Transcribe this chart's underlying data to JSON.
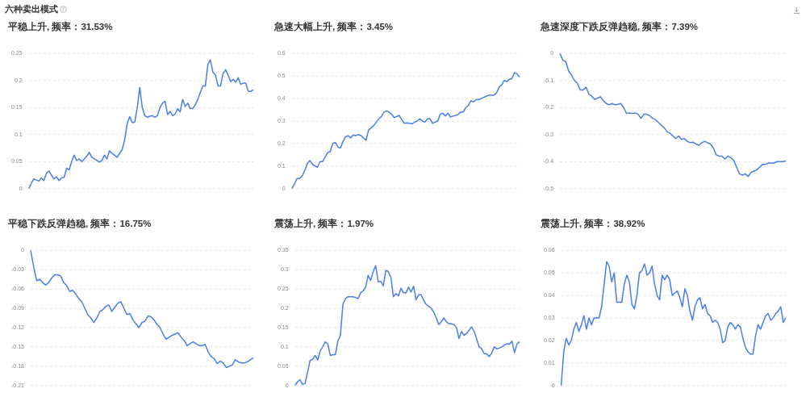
{
  "chart_data": [
    {
      "type": "line",
      "title": "平稳上升, 频率：31.53%",
      "annotations": [
        "六种卖出模式"
      ],
      "grid": "y",
      "legend": false,
      "marker": "none",
      "line_style": "solid",
      "ylim": [
        0,
        0.25
      ],
      "yticks": [
        0,
        0.05,
        0.1,
        0.15,
        0.2,
        0.25
      ],
      "categories": [
        null,
        null,
        null,
        null,
        null,
        null,
        null,
        null,
        null,
        null,
        null,
        null,
        null,
        null,
        null,
        null,
        null,
        null,
        null,
        null,
        null,
        null,
        null,
        null,
        null,
        null,
        null,
        null,
        null,
        null,
        null,
        null,
        null,
        null,
        null,
        null,
        null,
        null,
        null,
        null,
        null,
        null,
        null,
        null,
        null,
        null,
        null,
        null,
        null,
        null,
        null,
        null,
        null,
        null,
        null,
        null,
        null,
        null,
        null,
        null,
        null,
        null,
        null,
        null,
        null,
        null,
        null,
        null,
        null,
        null,
        null,
        null,
        null,
        null,
        null,
        null,
        null,
        null,
        null,
        null,
        null,
        null,
        null,
        null,
        null,
        null,
        null,
        null,
        null,
        null
      ],
      "series": [
        {
          "color": "#4a7ee8",
          "values": [
            0,
            0.01,
            0.018,
            0.016,
            0.014,
            0.02,
            0.015,
            0.028,
            0.033,
            0.025,
            0.018,
            0.022,
            0.015,
            0.02,
            0.021,
            0.038,
            0.035,
            0.05,
            0.062,
            0.052,
            0.055,
            0.05,
            0.055,
            0.06,
            0.067,
            0.058,
            0.055,
            0.052,
            0.049,
            0.052,
            0.062,
            0.055,
            0.07,
            0.065,
            0.062,
            0.058,
            0.065,
            0.072,
            0.09,
            0.12,
            0.133,
            0.122,
            0.123,
            0.15,
            0.187,
            0.15,
            0.135,
            0.132,
            0.134,
            0.135,
            0.132,
            0.135,
            0.15,
            0.158,
            0.162,
            0.137,
            0.143,
            0.135,
            0.138,
            0.148,
            0.142,
            0.165,
            0.152,
            0.158,
            0.148,
            0.148,
            0.155,
            0.165,
            0.178,
            0.19,
            0.19,
            0.23,
            0.238,
            0.215,
            0.21,
            0.19,
            0.19,
            0.213,
            0.22,
            0.21,
            0.198,
            0.202,
            0.197,
            0.205,
            0.193,
            0.195,
            0.195,
            0.18,
            0.18,
            0.183
          ]
        }
      ]
    },
    {
      "type": "line",
      "title": "急速大幅上升, 频率：3.45%",
      "grid": "y",
      "legend": false,
      "marker": "none",
      "line_style": "solid",
      "ylim": [
        0,
        0.6
      ],
      "yticks": [
        0,
        0.1,
        0.2,
        0.3,
        0.4,
        0.5,
        0.6
      ],
      "categories": [
        null,
        null,
        null,
        null,
        null,
        null,
        null,
        null,
        null,
        null,
        null,
        null,
        null,
        null,
        null,
        null,
        null,
        null,
        null,
        null,
        null,
        null,
        null,
        null,
        null,
        null,
        null,
        null,
        null,
        null,
        null,
        null,
        null,
        null,
        null,
        null,
        null,
        null,
        null,
        null,
        null,
        null,
        null,
        null,
        null,
        null,
        null,
        null,
        null,
        null,
        null,
        null,
        null,
        null,
        null,
        null,
        null,
        null,
        null,
        null,
        null,
        null,
        null,
        null,
        null,
        null,
        null,
        null,
        null,
        null,
        null,
        null,
        null,
        null,
        null,
        null,
        null,
        null,
        null,
        null,
        null,
        null,
        null,
        null,
        null,
        null,
        null,
        null,
        null,
        null
      ],
      "series": [
        {
          "color": "#4a7ee8",
          "values": [
            0,
            0.02,
            0.045,
            0.045,
            0.055,
            0.08,
            0.11,
            0.125,
            0.11,
            0.1,
            0.095,
            0.12,
            0.12,
            0.14,
            0.16,
            0.165,
            0.2,
            0.205,
            0.185,
            0.18,
            0.21,
            0.23,
            0.235,
            0.225,
            0.238,
            0.235,
            0.24,
            0.235,
            0.225,
            0.215,
            0.26,
            0.27,
            0.28,
            0.295,
            0.31,
            0.32,
            0.34,
            0.345,
            0.34,
            0.33,
            0.315,
            0.32,
            0.325,
            0.305,
            0.29,
            0.292,
            0.29,
            0.288,
            0.295,
            0.3,
            0.31,
            0.3,
            0.295,
            0.31,
            0.31,
            0.29,
            0.295,
            0.3,
            0.33,
            0.335,
            0.322,
            0.335,
            0.318,
            0.322,
            0.325,
            0.33,
            0.34,
            0.34,
            0.36,
            0.37,
            0.39,
            0.385,
            0.395,
            0.395,
            0.4,
            0.405,
            0.41,
            0.415,
            0.415,
            0.415,
            0.425,
            0.45,
            0.46,
            0.48,
            0.475,
            0.485,
            0.488,
            0.515,
            0.51,
            0.495
          ]
        }
      ]
    },
    {
      "type": "line",
      "title": "急速深度下跌反弹趋稳, 频率：7.39%",
      "grid": "y",
      "legend": false,
      "marker": "none",
      "line_style": "solid",
      "ylim": [
        -0.5,
        0
      ],
      "yticks": [
        -0.5,
        -0.4,
        -0.3,
        -0.2,
        -0.1,
        0
      ],
      "categories": [
        null,
        null,
        null,
        null,
        null,
        null,
        null,
        null,
        null,
        null,
        null,
        null,
        null,
        null,
        null,
        null,
        null,
        null,
        null,
        null,
        null,
        null,
        null,
        null,
        null,
        null,
        null,
        null,
        null,
        null,
        null,
        null,
        null,
        null,
        null,
        null,
        null,
        null,
        null,
        null,
        null,
        null,
        null,
        null,
        null,
        null,
        null,
        null,
        null,
        null,
        null,
        null,
        null,
        null,
        null,
        null,
        null,
        null,
        null,
        null,
        null,
        null,
        null,
        null,
        null,
        null,
        null,
        null,
        null,
        null,
        null,
        null,
        null,
        null,
        null,
        null,
        null,
        null,
        null
      ],
      "series": [
        {
          "color": "#4a7ee8",
          "values": [
            0,
            -0.025,
            -0.03,
            -0.065,
            -0.08,
            -0.1,
            -0.11,
            -0.135,
            -0.135,
            -0.125,
            -0.15,
            -0.158,
            -0.17,
            -0.165,
            -0.16,
            -0.175,
            -0.185,
            -0.19,
            -0.185,
            -0.19,
            -0.188,
            -0.185,
            -0.2,
            -0.222,
            -0.22,
            -0.222,
            -0.22,
            -0.225,
            -0.24,
            -0.225,
            -0.225,
            -0.23,
            -0.24,
            -0.245,
            -0.255,
            -0.265,
            -0.275,
            -0.29,
            -0.295,
            -0.305,
            -0.315,
            -0.305,
            -0.318,
            -0.315,
            -0.325,
            -0.33,
            -0.328,
            -0.335,
            -0.34,
            -0.33,
            -0.325,
            -0.33,
            -0.335,
            -0.35,
            -0.375,
            -0.38,
            -0.38,
            -0.39,
            -0.38,
            -0.385,
            -0.395,
            -0.42,
            -0.445,
            -0.45,
            -0.445,
            -0.455,
            -0.44,
            -0.435,
            -0.43,
            -0.42,
            -0.41,
            -0.41,
            -0.405,
            -0.405,
            -0.405,
            -0.4,
            -0.4,
            -0.4,
            -0.398
          ]
        }
      ]
    },
    {
      "type": "line",
      "title": "平稳下跌反弹趋稳, 频率：16.75%",
      "grid": "y",
      "legend": false,
      "marker": "none",
      "line_style": "solid",
      "ylim": [
        -0.21,
        0
      ],
      "yticks": [
        -0.21,
        -0.18,
        -0.15,
        -0.12,
        -0.09,
        -0.06,
        -0.03,
        0
      ],
      "categories": [
        null,
        null,
        null,
        null,
        null,
        null,
        null,
        null,
        null,
        null,
        null,
        null,
        null,
        null,
        null,
        null,
        null,
        null,
        null,
        null,
        null,
        null,
        null,
        null,
        null,
        null,
        null,
        null,
        null,
        null,
        null,
        null,
        null,
        null,
        null,
        null,
        null,
        null,
        null,
        null,
        null,
        null,
        null,
        null,
        null,
        null,
        null,
        null,
        null,
        null,
        null,
        null,
        null,
        null,
        null,
        null,
        null,
        null,
        null,
        null,
        null,
        null,
        null,
        null,
        null,
        null,
        null,
        null,
        null,
        null,
        null,
        null,
        null,
        null,
        null
      ],
      "series": [
        {
          "color": "#4a7ee8",
          "values": [
            0,
            -0.025,
            -0.047,
            -0.045,
            -0.05,
            -0.054,
            -0.05,
            -0.043,
            -0.038,
            -0.038,
            -0.04,
            -0.05,
            -0.055,
            -0.064,
            -0.062,
            -0.068,
            -0.075,
            -0.08,
            -0.09,
            -0.1,
            -0.105,
            -0.112,
            -0.105,
            -0.095,
            -0.092,
            -0.087,
            -0.085,
            -0.095,
            -0.088,
            -0.082,
            -0.08,
            -0.09,
            -0.1,
            -0.098,
            -0.108,
            -0.114,
            -0.12,
            -0.112,
            -0.11,
            -0.102,
            -0.103,
            -0.108,
            -0.115,
            -0.12,
            -0.13,
            -0.138,
            -0.135,
            -0.132,
            -0.13,
            -0.128,
            -0.135,
            -0.14,
            -0.148,
            -0.145,
            -0.142,
            -0.145,
            -0.148,
            -0.148,
            -0.146,
            -0.158,
            -0.165,
            -0.168,
            -0.176,
            -0.172,
            -0.175,
            -0.182,
            -0.18,
            -0.178,
            -0.17,
            -0.173,
            -0.175,
            -0.175,
            -0.173,
            -0.17,
            -0.167
          ]
        }
      ]
    },
    {
      "type": "line",
      "title": "震荡上升, 频率：1.97%",
      "grid": "y",
      "legend": false,
      "marker": "none",
      "line_style": "solid",
      "ylim": [
        0,
        0.35
      ],
      "yticks": [
        0,
        0.05,
        0.1,
        0.15,
        0.2,
        0.25,
        0.3,
        0.35
      ],
      "categories": [
        null,
        null,
        null,
        null,
        null,
        null,
        null,
        null,
        null,
        null,
        null,
        null,
        null,
        null,
        null,
        null,
        null,
        null,
        null,
        null,
        null,
        null,
        null,
        null,
        null,
        null,
        null,
        null,
        null,
        null,
        null,
        null,
        null,
        null,
        null,
        null,
        null,
        null,
        null,
        null,
        null,
        null,
        null,
        null,
        null,
        null,
        null,
        null,
        null,
        null,
        null,
        null,
        null,
        null,
        null,
        null,
        null,
        null,
        null,
        null,
        null,
        null,
        null,
        null,
        null,
        null,
        null,
        null,
        null,
        null,
        null,
        null,
        null,
        null,
        null,
        null,
        null,
        null,
        null,
        null,
        null,
        null,
        null,
        null,
        null,
        null,
        null,
        null,
        null,
        null
      ],
      "series": [
        {
          "color": "#4a7ee8",
          "values": [
            0,
            0.01,
            0.015,
            0.003,
            0.005,
            0.035,
            0.065,
            0.068,
            0.078,
            0.066,
            0.09,
            0.1,
            0.113,
            0.108,
            0.078,
            0.08,
            0.08,
            0.115,
            0.13,
            0.21,
            0.225,
            0.23,
            0.23,
            0.23,
            0.228,
            0.225,
            0.24,
            0.245,
            0.255,
            0.285,
            0.272,
            0.295,
            0.31,
            0.268,
            0.27,
            0.258,
            0.298,
            0.295,
            0.28,
            0.23,
            0.238,
            0.232,
            0.252,
            0.24,
            0.24,
            0.255,
            0.242,
            0.257,
            0.222,
            0.235,
            0.235,
            0.22,
            0.21,
            0.205,
            0.2,
            0.19,
            0.175,
            0.158,
            0.165,
            0.175,
            0.165,
            0.16,
            0.16,
            0.158,
            0.15,
            0.122,
            0.14,
            0.13,
            0.135,
            0.143,
            0.152,
            0.14,
            0.12,
            0.1,
            0.095,
            0.083,
            0.082,
            0.075,
            0.085,
            0.1,
            0.095,
            0.097,
            0.1,
            0.105,
            0.108,
            0.107,
            0.115,
            0.085,
            0.108,
            0.113
          ]
        }
      ]
    },
    {
      "type": "line",
      "title": "震荡上升, 频率：38.92%",
      "grid": "y",
      "legend": false,
      "marker": "none",
      "line_style": "solid",
      "ylim": [
        0,
        0.06
      ],
      "yticks": [
        0,
        0.01,
        0.02,
        0.03,
        0.04,
        0.05,
        0.06
      ],
      "categories": [
        null,
        null,
        null,
        null,
        null,
        null,
        null,
        null,
        null,
        null,
        null,
        null,
        null,
        null,
        null,
        null,
        null,
        null,
        null,
        null,
        null,
        null,
        null,
        null,
        null,
        null,
        null,
        null,
        null,
        null,
        null,
        null,
        null,
        null,
        null,
        null,
        null,
        null,
        null,
        null,
        null,
        null,
        null,
        null,
        null,
        null,
        null,
        null,
        null,
        null,
        null,
        null,
        null,
        null,
        null,
        null,
        null,
        null,
        null,
        null,
        null,
        null,
        null,
        null,
        null,
        null,
        null,
        null,
        null,
        null,
        null,
        null,
        null,
        null,
        null,
        null,
        null,
        null,
        null,
        null,
        null,
        null,
        null,
        null,
        null,
        null,
        null,
        null,
        null,
        null
      ],
      "series": [
        {
          "color": "#4a7ee8",
          "values": [
            0,
            0.015,
            0.021,
            0.018,
            0.02,
            0.025,
            0.028,
            0.024,
            0.027,
            0.031,
            0.025,
            0.03,
            0.027,
            0.03,
            0.03,
            0.03,
            0.035,
            0.045,
            0.055,
            0.053,
            0.046,
            0.05,
            0.037,
            0.037,
            0.037,
            0.045,
            0.049,
            0.046,
            0.036,
            0.034,
            0.04,
            0.05,
            0.051,
            0.054,
            0.049,
            0.05,
            0.053,
            0.045,
            0.04,
            0.038,
            0.049,
            0.047,
            0.049,
            0.047,
            0.04,
            0.041,
            0.042,
            0.039,
            0.035,
            0.043,
            0.04,
            0.033,
            0.029,
            0.035,
            0.038,
            0.039,
            0.034,
            0.036,
            0.032,
            0.031,
            0.028,
            0.029,
            0.028,
            0.025,
            0.019,
            0.02,
            0.026,
            0.028,
            0.027,
            0.025,
            0.027,
            0.026,
            0.021,
            0.017,
            0.015,
            0.014,
            0.014,
            0.022,
            0.027,
            0.025,
            0.028,
            0.031,
            0.032,
            0.029,
            0.03,
            0.032,
            0.033,
            0.035,
            0.028,
            0.03
          ]
        }
      ]
    }
  ]
}
